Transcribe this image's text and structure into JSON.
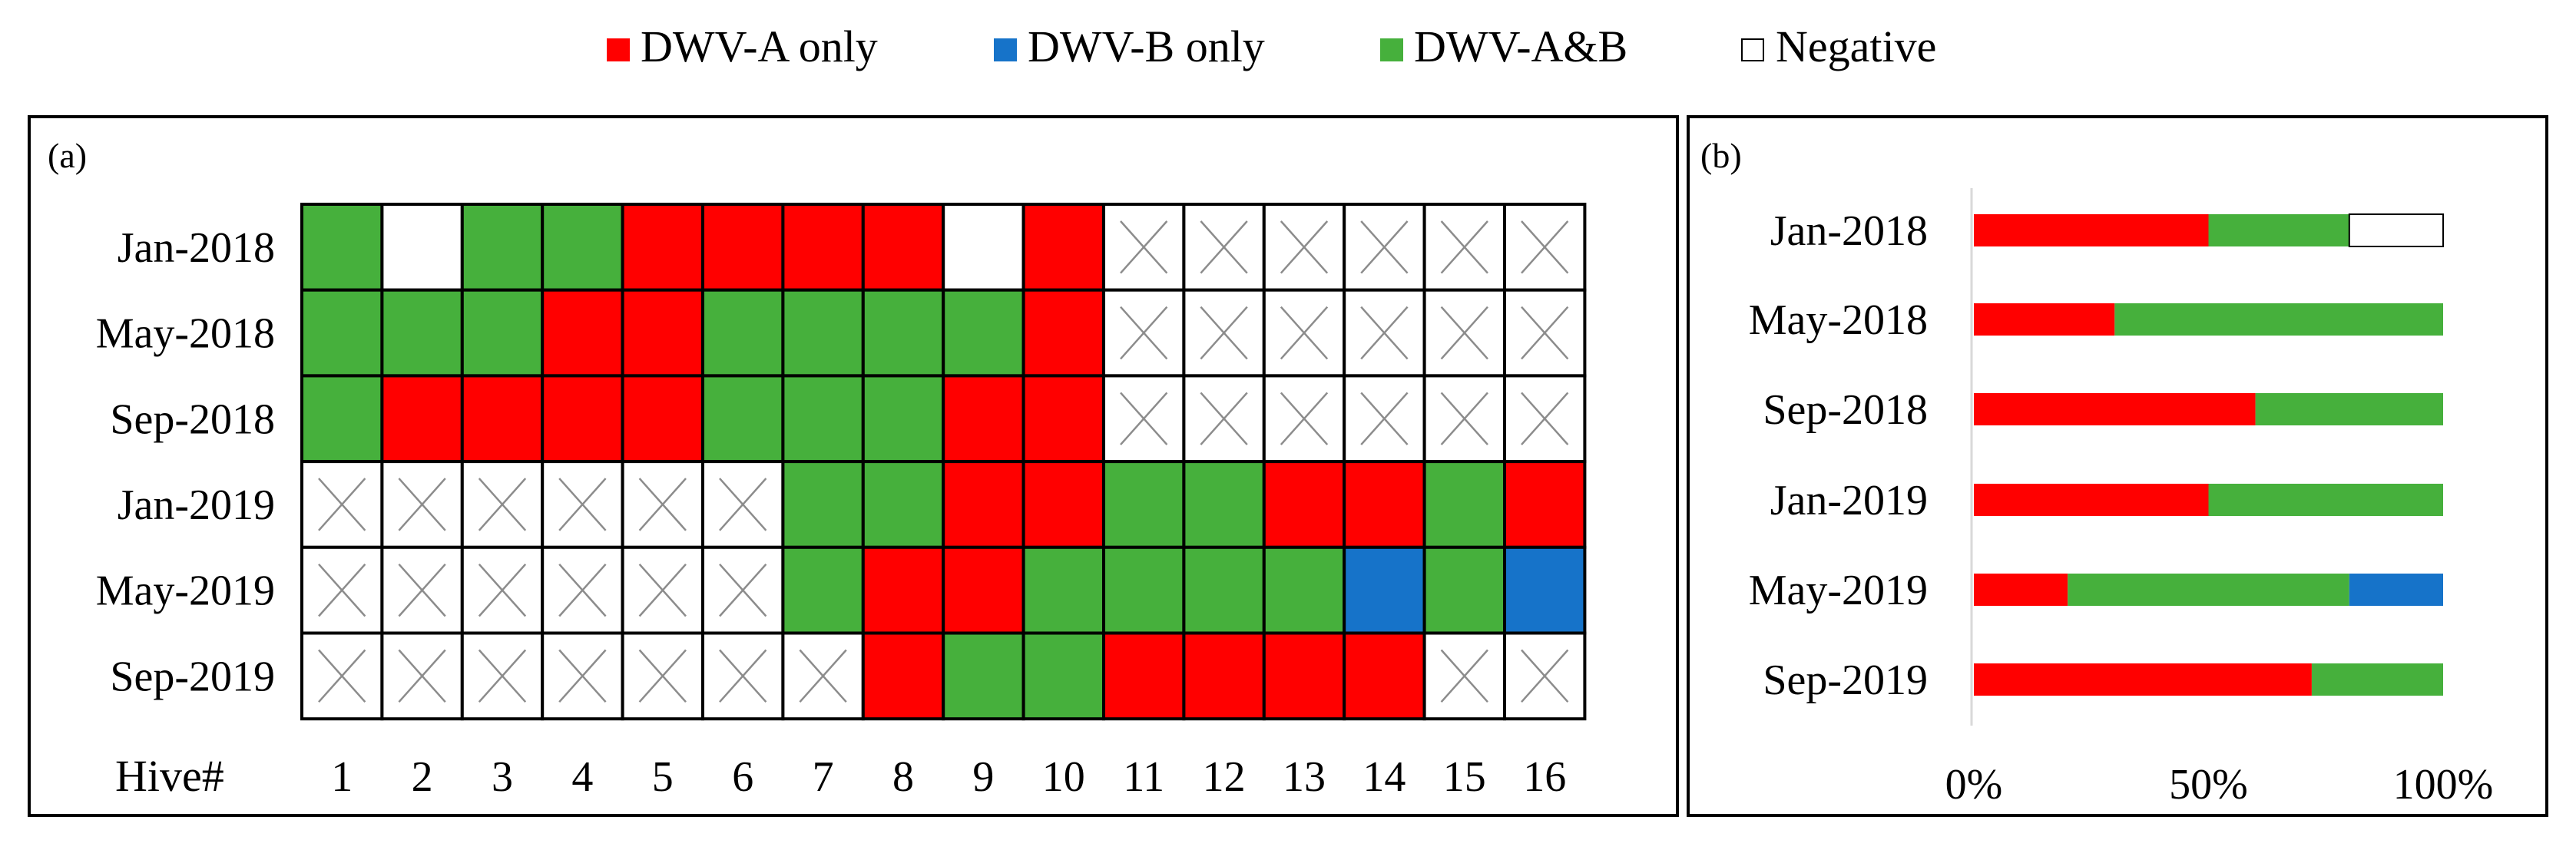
{
  "colors": {
    "DWV-A only": "#ff0000",
    "DWV-B only": "#1673c9",
    "DWV-A&B": "#46b03c",
    "Negative": "#ffffff",
    "not_sampled_mark": "#8c8c8c"
  },
  "chart_data": [
    {
      "type": "heatmap",
      "panel_label": "(a)",
      "legend": [
        {
          "key": "A",
          "label": "DWV-A only"
        },
        {
          "key": "B",
          "label": "DWV-B only"
        },
        {
          "key": "AB",
          "label": "DWV-A&B"
        },
        {
          "key": "N",
          "label": "Negative"
        }
      ],
      "legend_position": "top-center",
      "row_labels": [
        "Jan-2018",
        "May-2018",
        "Sep-2018",
        "Jan-2019",
        "May-2019",
        "Sep-2019"
      ],
      "column_axis_label": "Hive#",
      "column_labels": [
        "1",
        "2",
        "3",
        "4",
        "5",
        "6",
        "7",
        "8",
        "9",
        "10",
        "11",
        "12",
        "13",
        "14",
        "15",
        "16"
      ],
      "cell_codes": {
        "A": "DWV-A only",
        "B": "DWV-B only",
        "AB": "DWV-A&B",
        "N": "Negative",
        "X": "not sampled (crossed cell)"
      },
      "cells": [
        [
          "AB",
          "N",
          "AB",
          "AB",
          "A",
          "A",
          "A",
          "A",
          "N",
          "A",
          "X",
          "X",
          "X",
          "X",
          "X",
          "X"
        ],
        [
          "AB",
          "AB",
          "AB",
          "A",
          "A",
          "AB",
          "AB",
          "AB",
          "AB",
          "A",
          "X",
          "X",
          "X",
          "X",
          "X",
          "X"
        ],
        [
          "AB",
          "A",
          "A",
          "A",
          "A",
          "AB",
          "AB",
          "AB",
          "A",
          "A",
          "X",
          "X",
          "X",
          "X",
          "X",
          "X"
        ],
        [
          "X",
          "X",
          "X",
          "X",
          "X",
          "X",
          "AB",
          "AB",
          "A",
          "A",
          "AB",
          "AB",
          "A",
          "A",
          "AB",
          "A"
        ],
        [
          "X",
          "X",
          "X",
          "X",
          "X",
          "X",
          "AB",
          "A",
          "A",
          "AB",
          "AB",
          "AB",
          "AB",
          "B",
          "AB",
          "B"
        ],
        [
          "X",
          "X",
          "X",
          "X",
          "X",
          "X",
          "X",
          "A",
          "AB",
          "AB",
          "A",
          "A",
          "A",
          "A",
          "X",
          "X"
        ]
      ]
    },
    {
      "type": "bar",
      "orientation": "horizontal",
      "stacked": "percent",
      "panel_label": "(b)",
      "categories": [
        "Jan-2018",
        "May-2018",
        "Sep-2018",
        "Jan-2019",
        "May-2019",
        "Sep-2019"
      ],
      "series": [
        {
          "name": "DWV-A only",
          "color_key": "DWV-A only",
          "values": [
            50,
            30,
            60,
            50,
            20,
            72
          ]
        },
        {
          "name": "DWV-A&B",
          "color_key": "DWV-A&B",
          "values": [
            30,
            70,
            40,
            50,
            60,
            28
          ]
        },
        {
          "name": "DWV-B only",
          "color_key": "DWV-B only",
          "values": [
            0,
            0,
            0,
            0,
            20,
            0
          ]
        },
        {
          "name": "Negative",
          "color_key": "Negative",
          "values": [
            20,
            0,
            0,
            0,
            0,
            0
          ]
        }
      ],
      "xlim": [
        0,
        100
      ],
      "xticks": [
        "0%",
        "50%",
        "100%"
      ],
      "grid": false
    }
  ]
}
